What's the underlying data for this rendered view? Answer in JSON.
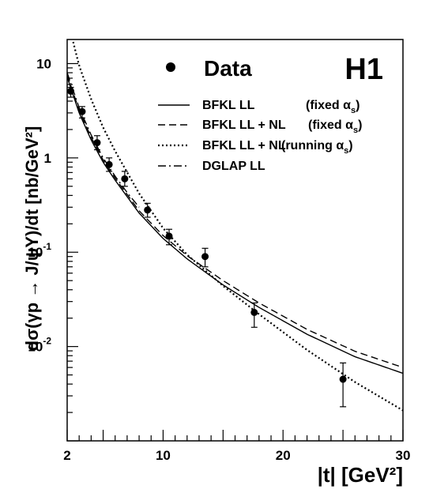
{
  "chart_data": {
    "type": "scatter",
    "title": "H1",
    "xlabel": "|t| [GeV²]",
    "ylabel": "dσ(γp → J/ψY)/dt [nb/GeV²]",
    "xscale": "linear",
    "yscale": "log",
    "xlim": [
      2,
      30
    ],
    "ylim": [
      0.001,
      18
    ],
    "x_tick_labels": [
      {
        "value": 2,
        "label": "2"
      },
      {
        "value": 10,
        "label": "10"
      },
      {
        "value": 20,
        "label": "20"
      },
      {
        "value": 30,
        "label": "30"
      }
    ],
    "y_tick_labels": [
      {
        "value": 10,
        "base": "10",
        "exp": ""
      },
      {
        "value": 1,
        "base": "1",
        "exp": ""
      },
      {
        "value": 0.1,
        "base": "10",
        "exp": "-1"
      },
      {
        "value": 0.01,
        "base": "10",
        "exp": "-2"
      }
    ],
    "legend_position": "top-right",
    "data_points": {
      "name": "Data",
      "x": [
        2.3,
        3.25,
        4.5,
        5.5,
        6.8,
        8.7,
        10.5,
        13.5,
        17.6,
        25.0
      ],
      "y": [
        5.1,
        3.1,
        1.45,
        0.85,
        0.6,
        0.28,
        0.148,
        0.09,
        0.023,
        0.0045
      ],
      "err_low": [
        4.4,
        2.65,
        1.22,
        0.72,
        0.5,
        0.235,
        0.12,
        0.07,
        0.016,
        0.0023
      ],
      "err_high": [
        5.6,
        3.5,
        1.72,
        1.0,
        0.72,
        0.33,
        0.175,
        0.11,
        0.029,
        0.0067
      ]
    },
    "series": [
      {
        "name": "BFKL LL",
        "name_suffix": "(fixed α_s)",
        "style": "solid",
        "x": [
          2,
          3,
          4,
          5,
          6,
          8,
          10,
          12,
          15,
          18,
          22,
          26,
          30
        ],
        "y": [
          7.2,
          3.0,
          1.55,
          0.9,
          0.58,
          0.26,
          0.14,
          0.085,
          0.045,
          0.026,
          0.0135,
          0.0078,
          0.0052
        ]
      },
      {
        "name": "BFKL LL + NL",
        "name_suffix": "(fixed α_s)",
        "style": "dashed",
        "x": [
          2,
          3,
          4,
          5,
          6,
          8,
          10,
          12,
          15,
          18,
          22,
          26,
          30
        ],
        "y": [
          7.6,
          3.2,
          1.65,
          0.95,
          0.61,
          0.275,
          0.15,
          0.092,
          0.05,
          0.029,
          0.0152,
          0.0089,
          0.006
        ]
      },
      {
        "name": "BFKL LL + NL",
        "name_suffix": "(running α_s)",
        "style": "dotted",
        "x": [
          2.5,
          3,
          4,
          5,
          6,
          8,
          10,
          12,
          15,
          18,
          22,
          26,
          30
        ],
        "y": [
          17.0,
          9.5,
          4.2,
          2.1,
          1.18,
          0.42,
          0.18,
          0.094,
          0.044,
          0.022,
          0.0092,
          0.0042,
          0.0021
        ]
      },
      {
        "name": "DGLAP LL",
        "name_suffix": "",
        "style": "dashdot",
        "x": [
          2,
          3,
          4,
          5,
          6,
          7,
          8
        ],
        "y": [
          8.0,
          3.4,
          1.75,
          1.0,
          0.64,
          0.43,
          0.3
        ]
      }
    ]
  }
}
